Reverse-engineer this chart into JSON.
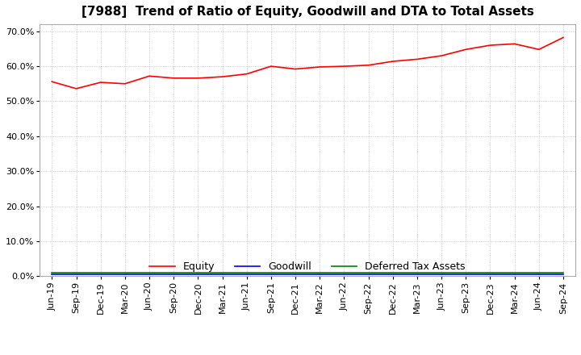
{
  "title": "[7988]  Trend of Ratio of Equity, Goodwill and DTA to Total Assets",
  "x_labels": [
    "Jun-19",
    "Sep-19",
    "Dec-19",
    "Mar-20",
    "Jun-20",
    "Sep-20",
    "Dec-20",
    "Mar-21",
    "Jun-21",
    "Sep-21",
    "Dec-21",
    "Mar-22",
    "Jun-22",
    "Sep-22",
    "Dec-22",
    "Mar-23",
    "Jun-23",
    "Sep-23",
    "Dec-23",
    "Mar-24",
    "Jun-24",
    "Sep-24"
  ],
  "equity": [
    0.556,
    0.536,
    0.554,
    0.55,
    0.572,
    0.566,
    0.566,
    0.57,
    0.578,
    0.6,
    0.592,
    0.598,
    0.6,
    0.603,
    0.614,
    0.62,
    0.63,
    0.648,
    0.66,
    0.664,
    0.648,
    0.682
  ],
  "goodwill": [
    0.005,
    0.005,
    0.005,
    0.005,
    0.005,
    0.005,
    0.005,
    0.005,
    0.005,
    0.005,
    0.005,
    0.005,
    0.005,
    0.005,
    0.005,
    0.005,
    0.005,
    0.005,
    0.005,
    0.005,
    0.005,
    0.005
  ],
  "dta": [
    0.01,
    0.01,
    0.01,
    0.01,
    0.01,
    0.01,
    0.01,
    0.01,
    0.01,
    0.01,
    0.01,
    0.01,
    0.01,
    0.01,
    0.01,
    0.01,
    0.01,
    0.01,
    0.01,
    0.01,
    0.01,
    0.01
  ],
  "equity_color": "#ff0000",
  "goodwill_color": "#0000ff",
  "dta_color": "#008000",
  "ylim": [
    0.0,
    0.72
  ],
  "yticks": [
    0.0,
    0.1,
    0.2,
    0.3,
    0.4,
    0.5,
    0.6,
    0.7
  ],
  "background_color": "#ffffff",
  "plot_bg_color": "#ffffff",
  "grid_color": "#aaaaaa",
  "title_fontsize": 11,
  "tick_fontsize": 8
}
